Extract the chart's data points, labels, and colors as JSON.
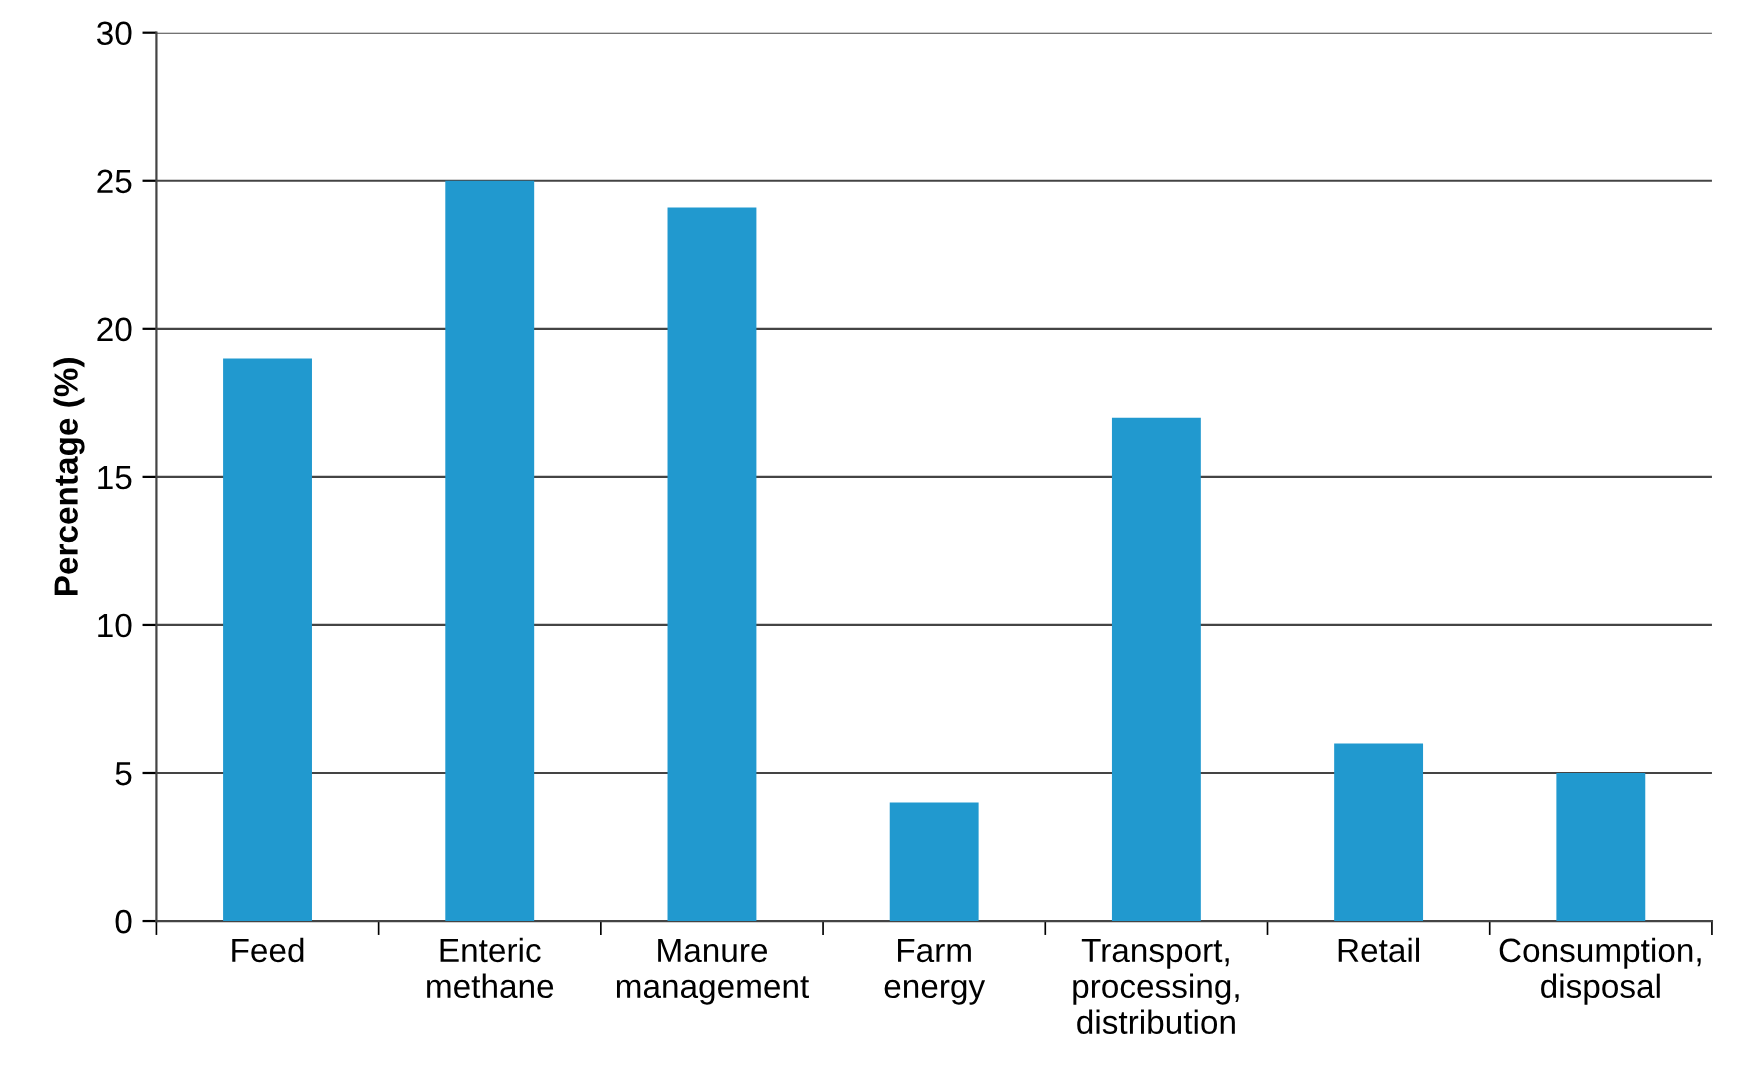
{
  "chart_data": {
    "type": "bar",
    "ylabel": "Percentage (%)",
    "categories": [
      "Feed",
      "Enteric\nmethane",
      "Manure\nmanagement",
      "Farm\nenergy",
      "Transport,\nprocessing,\ndistribution",
      "Retail",
      "Consumption,\ndisposal"
    ],
    "values": [
      19,
      25,
      24.1,
      4,
      17,
      6,
      5
    ],
    "color": "#2199cf",
    "ylim": [
      0,
      30
    ],
    "yticks": [
      0,
      5,
      10,
      15,
      20,
      25,
      30
    ],
    "grid": "y",
    "legend": false
  }
}
